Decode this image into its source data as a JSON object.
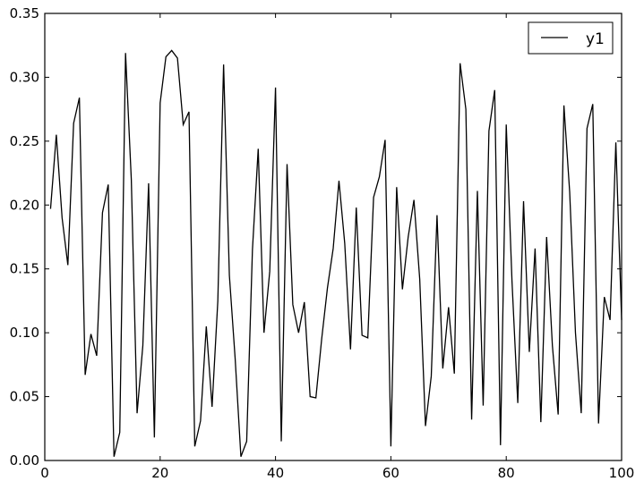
{
  "chart_data": {
    "type": "line",
    "title": "",
    "xlabel": "",
    "ylabel": "",
    "xlim": [
      0,
      100
    ],
    "ylim": [
      0,
      0.35
    ],
    "xticks": [
      0,
      20,
      40,
      60,
      80,
      100
    ],
    "yticks": [
      0.0,
      0.05,
      0.1,
      0.15,
      0.2,
      0.25,
      0.3,
      0.35
    ],
    "xtick_labels": [
      "0",
      "20",
      "40",
      "60",
      "80",
      "100"
    ],
    "ytick_labels": [
      "0.00",
      "0.05",
      "0.10",
      "0.15",
      "0.20",
      "0.25",
      "0.30",
      "0.35"
    ],
    "grid": false,
    "legend_position": "top-right",
    "series": [
      {
        "name": "y1",
        "color": "#000000",
        "x": [
          1,
          2,
          3,
          4,
          5,
          6,
          7,
          8,
          9,
          10,
          11,
          12,
          13,
          14,
          15,
          16,
          17,
          18,
          19,
          20,
          21,
          22,
          23,
          24,
          25,
          26,
          27,
          28,
          29,
          30,
          31,
          32,
          33,
          34,
          35,
          36,
          37,
          38,
          39,
          40,
          41,
          42,
          43,
          44,
          45,
          46,
          47,
          48,
          49,
          50,
          51,
          52,
          53,
          54,
          55,
          56,
          57,
          58,
          59,
          60,
          61,
          62,
          63,
          64,
          65,
          66,
          67,
          68,
          69,
          70,
          71,
          72,
          73,
          74,
          75,
          76,
          77,
          78,
          79,
          80,
          81,
          82,
          83,
          84,
          85,
          86,
          87,
          88,
          89,
          90,
          91,
          92,
          93,
          94,
          95,
          96,
          97,
          98,
          99,
          100
        ],
        "values": [
          0.197,
          0.255,
          0.19,
          0.153,
          0.264,
          0.284,
          0.067,
          0.099,
          0.082,
          0.194,
          0.216,
          0.003,
          0.022,
          0.319,
          0.22,
          0.037,
          0.09,
          0.217,
          0.018,
          0.28,
          0.316,
          0.321,
          0.315,
          0.263,
          0.273,
          0.011,
          0.031,
          0.105,
          0.042,
          0.125,
          0.31,
          0.145,
          0.08,
          0.003,
          0.015,
          0.165,
          0.244,
          0.1,
          0.148,
          0.292,
          0.015,
          0.232,
          0.122,
          0.1,
          0.124,
          0.05,
          0.049,
          0.095,
          0.135,
          0.166,
          0.219,
          0.17,
          0.087,
          0.198,
          0.098,
          0.096,
          0.206,
          0.222,
          0.251,
          0.011,
          0.214,
          0.134,
          0.175,
          0.204,
          0.142,
          0.027,
          0.066,
          0.192,
          0.072,
          0.12,
          0.068,
          0.311,
          0.275,
          0.032,
          0.211,
          0.043,
          0.258,
          0.29,
          0.012,
          0.263,
          0.14,
          0.045,
          0.203,
          0.085,
          0.166,
          0.03,
          0.175,
          0.09,
          0.036,
          0.278,
          0.21,
          0.1,
          0.037,
          0.26,
          0.279,
          0.029,
          0.128,
          0.11,
          0.249,
          0.11
        ]
      }
    ]
  }
}
